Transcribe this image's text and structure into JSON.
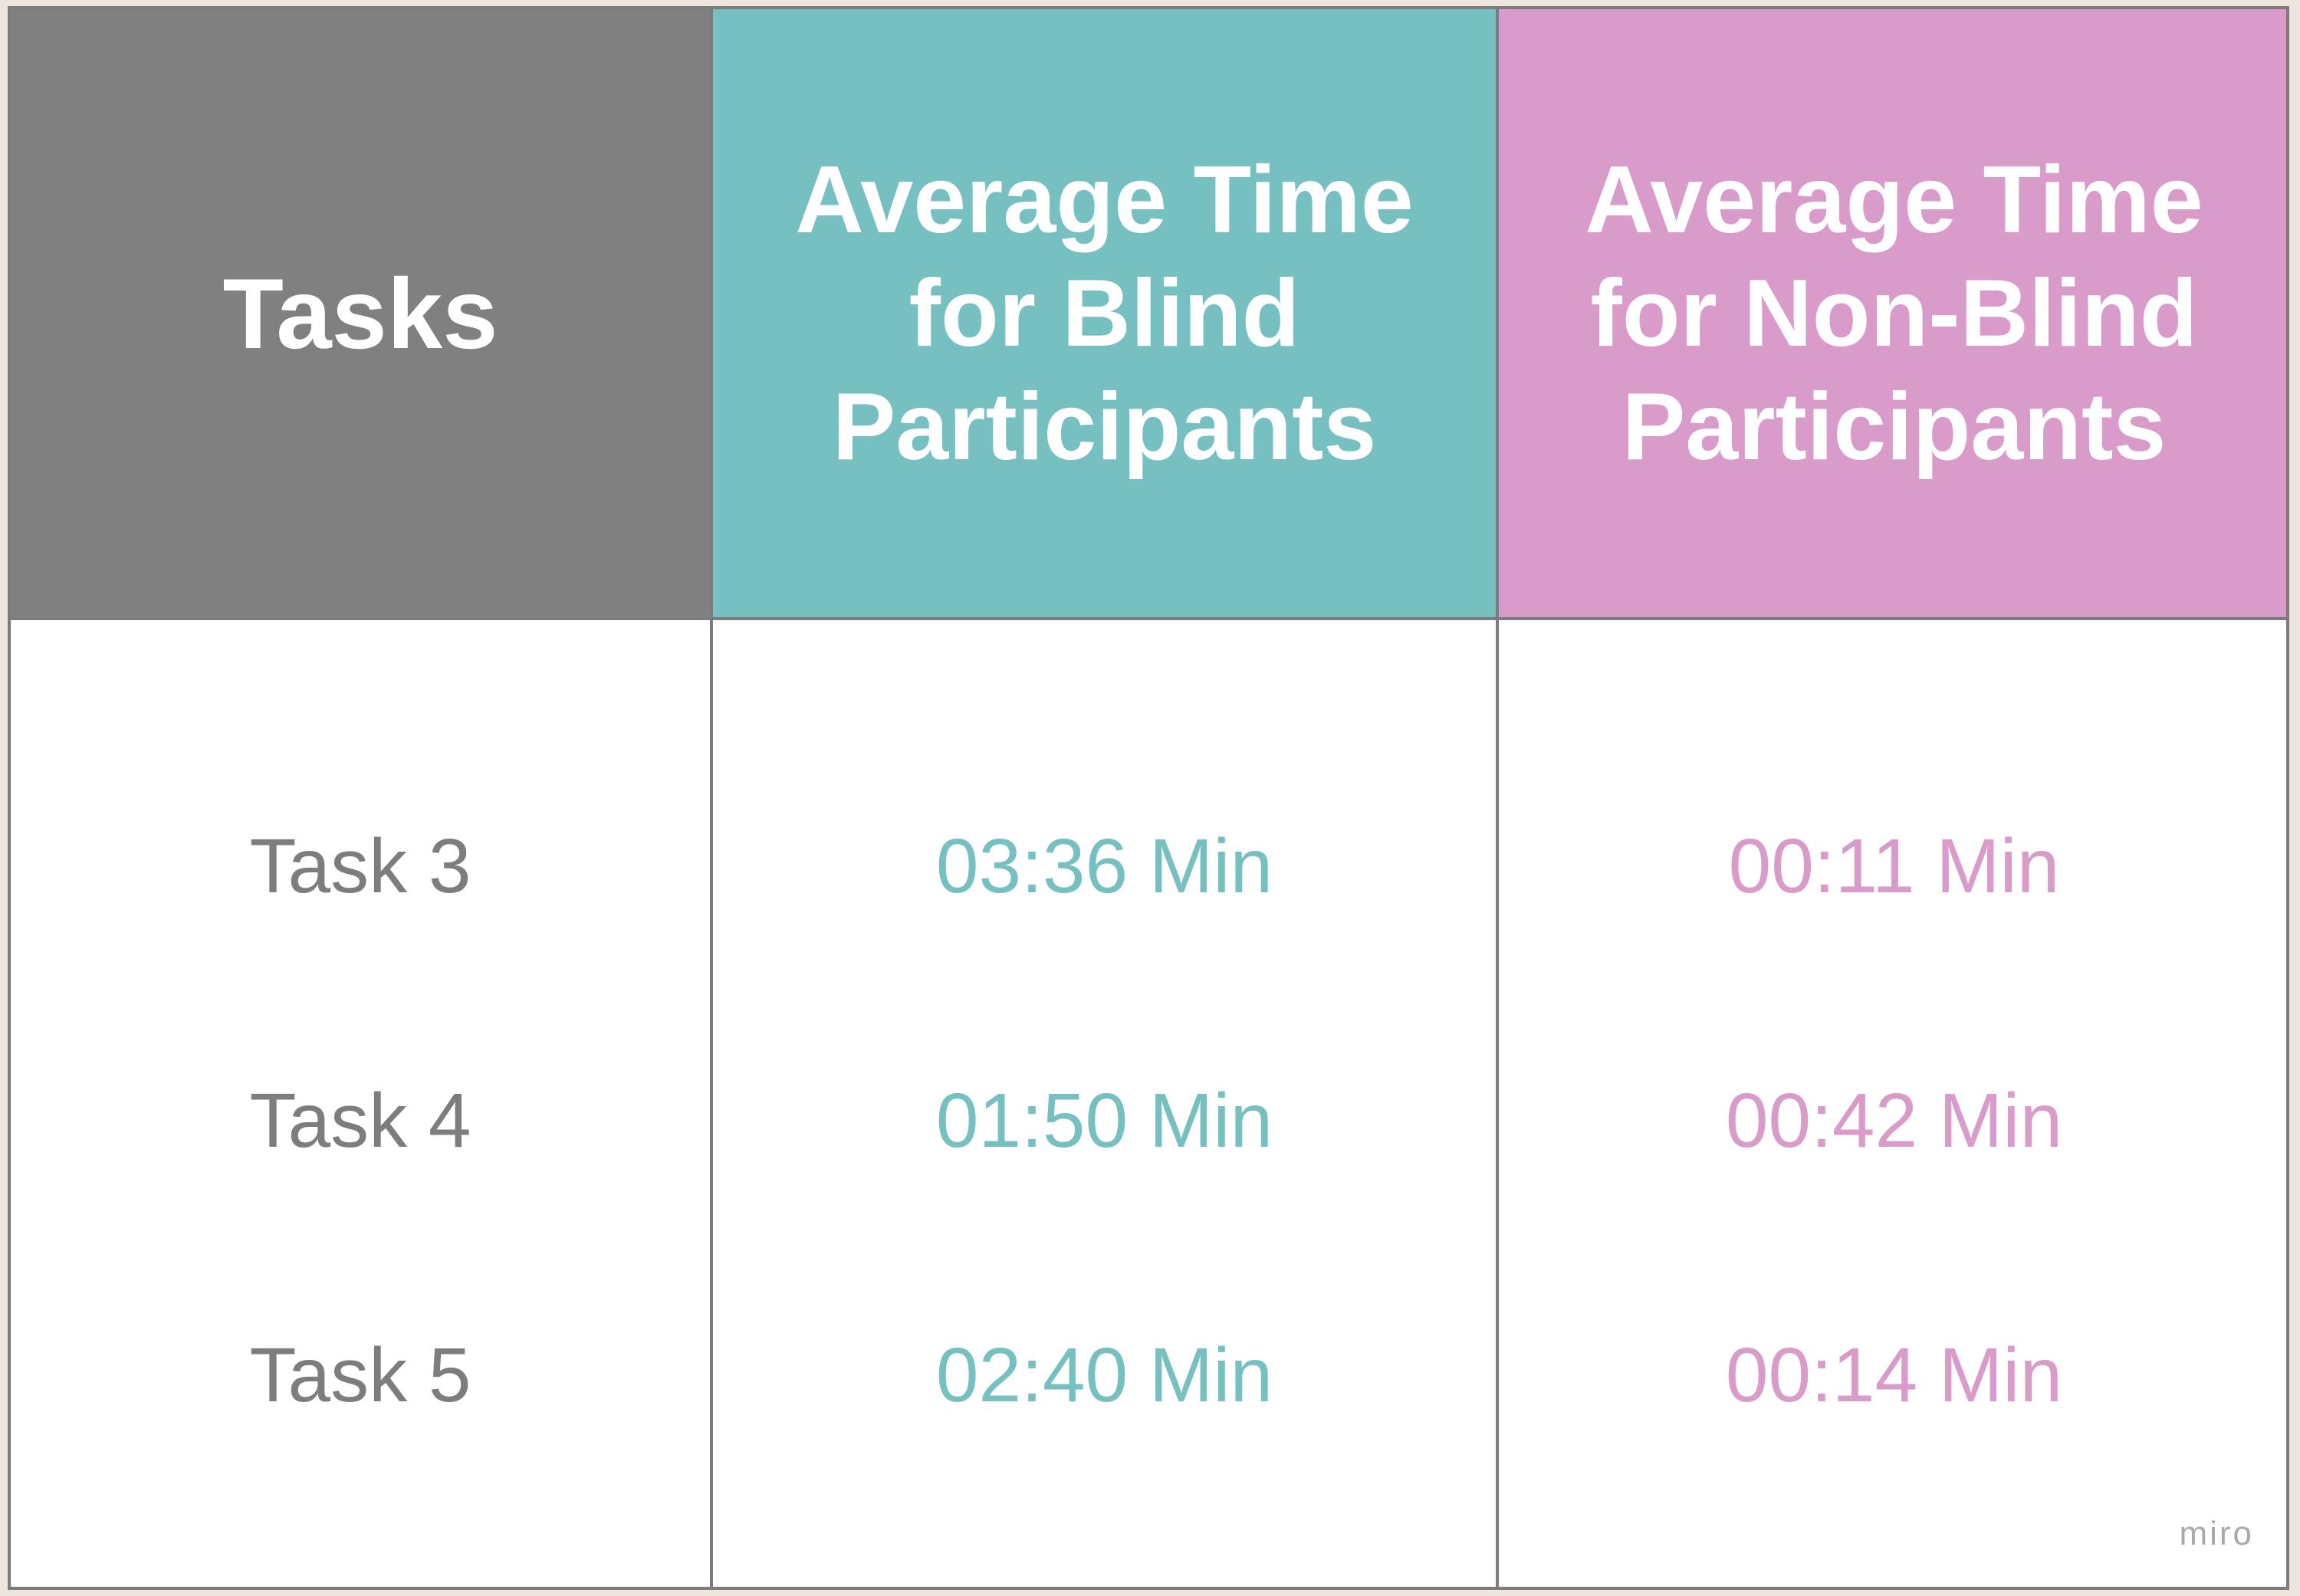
{
  "table": {
    "headers": [
      "Tasks",
      "Average Time\nfor Blind\nParticipants",
      "Average Time\nfor Non-Blind\nParticipants"
    ],
    "rows": [
      {
        "task": "Task 3",
        "blind": "03:36 Min",
        "non_blind": "00:11 Min"
      },
      {
        "task": "Task 4",
        "blind": "01:50 Min",
        "non_blind": "00:42 Min"
      },
      {
        "task": "Task 5",
        "blind": "02:40 Min",
        "non_blind": "00:14 Min"
      }
    ]
  },
  "watermark": "miro",
  "colors": {
    "tasks_header": "#808080",
    "blind_accent": "#76c0c2",
    "non_blind_accent": "#d89bca",
    "task_text": "#7d7d7d",
    "grid_line": "#7c7c7c",
    "background": "#ece6df"
  }
}
